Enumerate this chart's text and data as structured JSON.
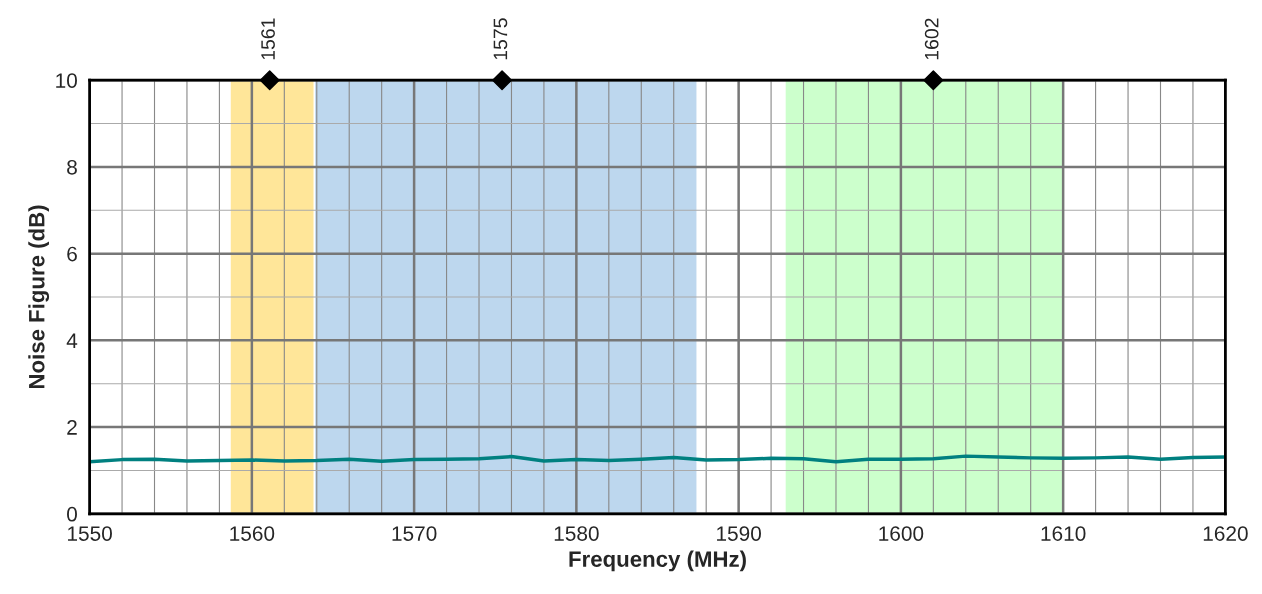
{
  "chart_data": {
    "type": "line",
    "xlabel": "Frequency (MHz)",
    "ylabel": "Noise Figure (dB)",
    "xlim": [
      1550,
      1620
    ],
    "xticks": [
      1550,
      1560,
      1570,
      1580,
      1590,
      1600,
      1610,
      1620
    ],
    "ylim": [
      0,
      10
    ],
    "yticks": [
      0,
      2,
      4,
      6,
      8,
      10
    ],
    "grid": true,
    "bands": [
      {
        "axis": "x",
        "from": 1558.7,
        "to": 1563.8,
        "color": "#ffe699"
      },
      {
        "axis": "x",
        "from": 1563.9,
        "to": 1587.4,
        "color": "#bdd7ee"
      },
      {
        "axis": "x",
        "from": 1592.9,
        "to": 1610,
        "color": "#ccffcc"
      }
    ],
    "series": [
      {
        "color": "#008080",
        "x": [
          1550,
          1552,
          1554,
          1556,
          1558,
          1560,
          1562,
          1564,
          1566,
          1568,
          1570,
          1572,
          1574,
          1576,
          1578,
          1580,
          1582,
          1584,
          1586,
          1588,
          1590,
          1592,
          1594,
          1596,
          1598,
          1600,
          1602,
          1604,
          1606,
          1608,
          1610,
          1612,
          1614,
          1616,
          1618,
          1620
        ],
        "values": [
          1.2,
          1.25,
          1.26,
          1.22,
          1.23,
          1.24,
          1.22,
          1.23,
          1.26,
          1.21,
          1.25,
          1.26,
          1.27,
          1.32,
          1.22,
          1.25,
          1.23,
          1.26,
          1.3,
          1.24,
          1.25,
          1.28,
          1.27,
          1.2,
          1.26,
          1.26,
          1.27,
          1.33,
          1.31,
          1.29,
          1.28,
          1.29,
          1.31,
          1.26,
          1.3,
          1.31
        ]
      },
      {
        "type": "scatter",
        "color": "#000000",
        "marker": "diamond",
        "x": [
          1561.1,
          1575.42,
          1602
        ],
        "values": [
          10,
          10,
          10
        ]
      }
    ],
    "annotations": [
      {
        "text": "1561",
        "x": 1561.1,
        "y": 10
      },
      {
        "text": "1575",
        "x": 1575.42,
        "y": 10
      },
      {
        "text": "1602",
        "x": 1602,
        "y": 10
      }
    ]
  }
}
